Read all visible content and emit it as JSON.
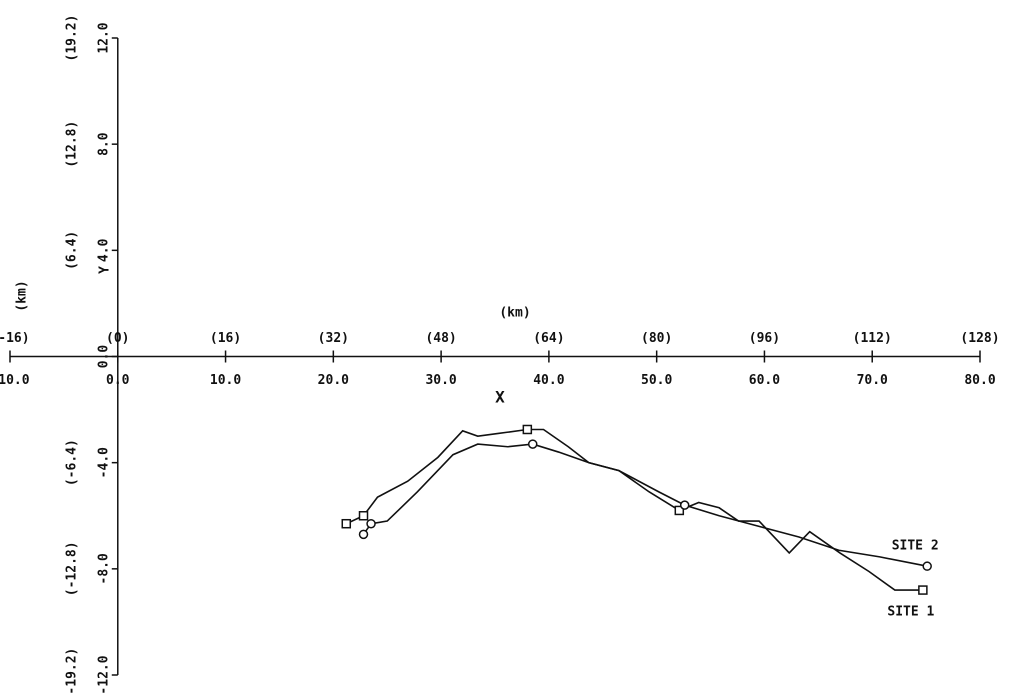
{
  "chart_data": {
    "type": "line",
    "xlabel": "X",
    "x_unit": "(km)",
    "ylabel": "Y",
    "y_unit": "(km)",
    "xlim": [
      -10,
      80
    ],
    "xticks": [
      {
        "value": -10,
        "label": "-10.0"
      },
      {
        "value": 0,
        "label": "0.0"
      },
      {
        "value": 10,
        "label": "10.0"
      },
      {
        "value": 20,
        "label": "20.0"
      },
      {
        "value": 30,
        "label": "30.0"
      },
      {
        "value": 40,
        "label": "40.0"
      },
      {
        "value": 50,
        "label": "50.0"
      },
      {
        "value": 60,
        "label": "60.0"
      },
      {
        "value": 70,
        "label": "70.0"
      },
      {
        "value": 80,
        "label": "80.0"
      }
    ],
    "x2lim": [
      -16,
      128
    ],
    "x2ticks": [
      {
        "value": -16,
        "label": "(-16)"
      },
      {
        "value": 0,
        "label": "(0)"
      },
      {
        "value": 16,
        "label": "(16)"
      },
      {
        "value": 32,
        "label": "(32)"
      },
      {
        "value": 48,
        "label": "(48)"
      },
      {
        "value": 64,
        "label": "(64)"
      },
      {
        "value": 80,
        "label": "(80)"
      },
      {
        "value": 96,
        "label": "(96)"
      },
      {
        "value": 112,
        "label": "(112)"
      },
      {
        "value": 128,
        "label": "(128)"
      }
    ],
    "ylim": [
      -12,
      12
    ],
    "yticks": [
      {
        "value": -12,
        "label": "-12.0"
      },
      {
        "value": -8,
        "label": "-8.0"
      },
      {
        "value": -4,
        "label": "-4.0"
      },
      {
        "value": 0,
        "label": "0.0"
      },
      {
        "value": 4,
        "label": "4.0"
      },
      {
        "value": 8,
        "label": "8.0"
      },
      {
        "value": 12,
        "label": "12.0"
      }
    ],
    "y2lim": [
      -19.2,
      19.2
    ],
    "y2ticks": [
      {
        "value": -19.2,
        "label": "(-19.2)"
      },
      {
        "value": -12.8,
        "label": "(-12.8)"
      },
      {
        "value": -6.4,
        "label": "(-6.4)"
      },
      {
        "value": 6.4,
        "label": "(6.4)"
      },
      {
        "value": 12.8,
        "label": "(12.8)"
      },
      {
        "value": 19.2,
        "label": "(19.2)"
      }
    ],
    "series": [
      {
        "name": "SITE 1",
        "color": "#111111",
        "marker": "square",
        "marker_points": [
          0,
          1,
          8,
          14,
          24
        ],
        "x": [
          21.2,
          22.8,
          24.1,
          26.9,
          29.7,
          32.0,
          33.4,
          35.3,
          38.0,
          39.5,
          41.8,
          43.7,
          46.5,
          49.3,
          52.1,
          53.9,
          55.8,
          57.6,
          59.5,
          62.3,
          64.2,
          67.0,
          69.7,
          72.1,
          74.7
        ],
        "values": [
          -6.3,
          -6.0,
          -5.3,
          -4.7,
          -3.8,
          -2.8,
          -3.0,
          -2.9,
          -2.75,
          -2.75,
          -3.4,
          -4.0,
          -4.3,
          -5.1,
          -5.8,
          -5.5,
          -5.7,
          -6.2,
          -6.2,
          -7.4,
          -6.6,
          -7.4,
          -8.1,
          -8.8,
          -8.8
        ]
      },
      {
        "name": "SITE 2",
        "color": "#111111",
        "marker": "circle",
        "marker_points": [
          0,
          1,
          7,
          12,
          18
        ],
        "x": [
          22.8,
          23.5,
          25.0,
          27.8,
          31.1,
          33.4,
          36.2,
          38.5,
          40.9,
          43.7,
          46.5,
          50.2,
          52.6,
          55.8,
          59.5,
          63.2,
          66.9,
          70.7,
          75.1
        ],
        "values": [
          -6.7,
          -6.3,
          -6.2,
          -5.1,
          -3.7,
          -3.3,
          -3.4,
          -3.3,
          -3.6,
          -4.0,
          -4.3,
          -5.1,
          -5.6,
          -6.0,
          -6.4,
          -6.8,
          -7.3,
          -7.55,
          -7.9
        ]
      }
    ]
  }
}
